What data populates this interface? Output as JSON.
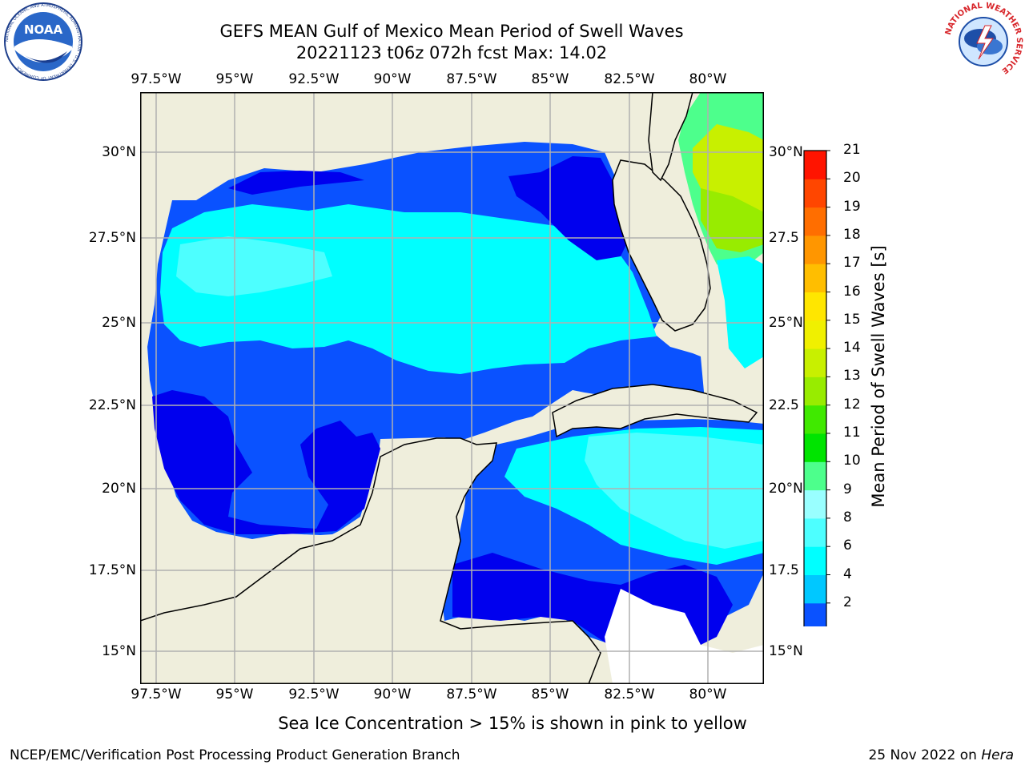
{
  "title": {
    "line1": "GEFS MEAN Gulf of Mexico Mean Period of Swell Waves",
    "line2": "20221123 t06z 072h fcst   Max: 14.02"
  },
  "map": {
    "lon_ticks": [
      "97.5°W",
      "95°W",
      "92.5°W",
      "90°W",
      "87.5°W",
      "85°W",
      "82.5°W",
      "80°W"
    ],
    "lat_ticks_left": [
      "30°N",
      "27.5°N",
      "25°N",
      "22.5°N",
      "20°N",
      "17.5°N",
      "15°N"
    ],
    "lat_ticks_right": [
      "30°N",
      "27.5",
      "25°N",
      "22.5",
      "20°N",
      "17.5",
      "15°N"
    ],
    "land_color": "#efeedc",
    "grid": true
  },
  "colorbar": {
    "label": "Mean Period of Swell Waves [s]",
    "ticks": [
      "2",
      "4",
      "6",
      "8",
      "9",
      "10",
      "11",
      "12",
      "13",
      "14",
      "15",
      "16",
      "17",
      "18",
      "19",
      "20",
      "21"
    ],
    "colors": [
      "#0a52ff",
      "#00c8ff",
      "#00ffff",
      "#4dffff",
      "#99ffff",
      "#4dff8c",
      "#00e400",
      "#40e900",
      "#98ec00",
      "#c8f000",
      "#f0f000",
      "#ffe600",
      "#ffbe00",
      "#ff9600",
      "#ff6e00",
      "#ff4600",
      "#ff1400"
    ],
    "extend_color": "#0000ee"
  },
  "annotation": "Sea Ice Concentration > 15% is shown in pink to yellow",
  "footer": {
    "left": "NCEP/EMC/Verification Post Processing Product Generation Branch",
    "right_prefix": "25 Nov 2022 on ",
    "right_machine": "Hera"
  },
  "logos": {
    "noaa_text": "NOAA",
    "noaa_ring": "NATIONAL OCEANIC AND ATMOSPHERIC ADMINISTRATION · U.S. DEPARTMENT OF COMMERCE",
    "nws_ring": "NATIONAL WEATHER SERVICE"
  }
}
